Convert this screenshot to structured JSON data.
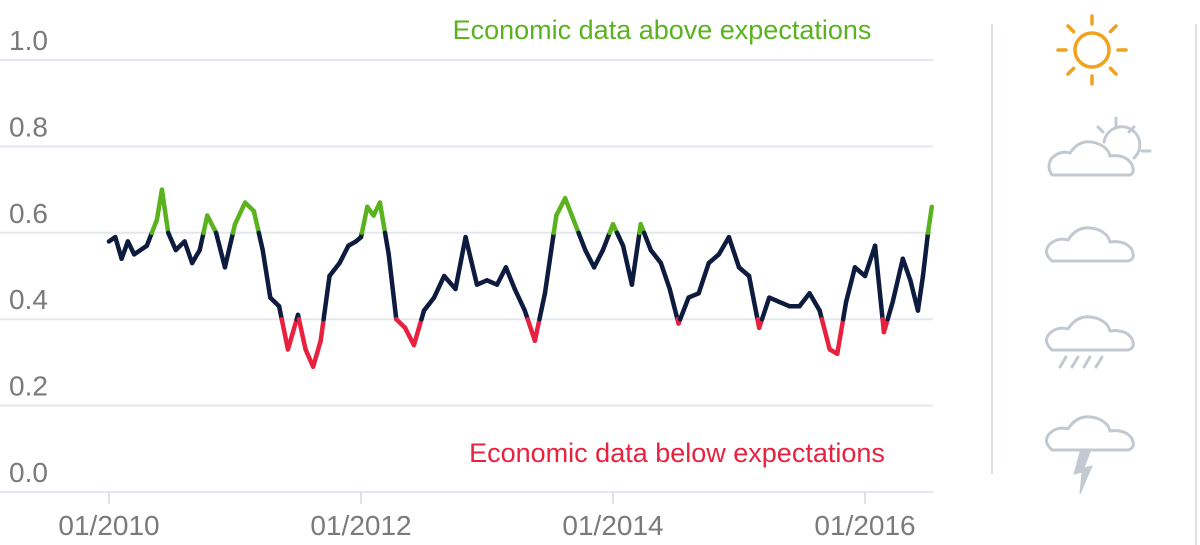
{
  "chart_data": {
    "type": "line",
    "title": "",
    "xlabel": "",
    "ylabel": "",
    "ylim": [
      0.0,
      1.0
    ],
    "xlim": [
      "2010-01",
      "2016-07"
    ],
    "yticks": [
      "0.0",
      "0.2",
      "0.4",
      "0.6",
      "0.8",
      "1.0"
    ],
    "xticks": [
      "01/2010",
      "01/2012",
      "01/2014",
      "01/2016"
    ],
    "grid": "horizontal",
    "thresholds": {
      "upper": 0.6,
      "lower": 0.4
    },
    "colors": {
      "above": "#5ab31e",
      "normal": "#0d1b3e",
      "below": "#e8213f"
    },
    "annotations": {
      "above": "Economic data above expectations",
      "below": "Economic data below expectations"
    },
    "series": [
      {
        "x": [
          2010.0,
          2010.05,
          2010.1,
          2010.15,
          2010.2,
          2010.3,
          2010.38,
          2010.42,
          2010.47,
          2010.53,
          2010.6,
          2010.66,
          2010.72,
          2010.78,
          2010.85,
          2010.92,
          2011.0,
          2011.08,
          2011.15,
          2011.22,
          2011.28,
          2011.35,
          2011.42,
          2011.5,
          2011.56,
          2011.62,
          2011.68,
          2011.75,
          2011.83,
          2011.9,
          2011.96,
          2012.0,
          2012.05,
          2012.1,
          2012.15,
          2012.22,
          2012.28,
          2012.35,
          2012.42,
          2012.5,
          2012.58,
          2012.66,
          2012.75,
          2012.83,
          2012.92,
          2013.0,
          2013.08,
          2013.15,
          2013.22,
          2013.3,
          2013.38,
          2013.46,
          2013.55,
          2013.62,
          2013.7,
          2013.78,
          2013.85,
          2013.92,
          2014.0,
          2014.08,
          2014.15,
          2014.22,
          2014.3,
          2014.38,
          2014.45,
          2014.52,
          2014.6,
          2014.68,
          2014.76,
          2014.84,
          2014.92,
          2015.0,
          2015.08,
          2015.16,
          2015.24,
          2015.32,
          2015.4,
          2015.48,
          2015.56,
          2015.64,
          2015.72,
          2015.78,
          2015.85,
          2015.92,
          2016.0,
          2016.08,
          2016.15,
          2016.22,
          2016.3,
          2016.36,
          2016.42,
          2016.46,
          2016.5,
          2016.53
        ],
        "values": [
          0.58,
          0.59,
          0.54,
          0.58,
          0.55,
          0.57,
          0.63,
          0.7,
          0.6,
          0.56,
          0.58,
          0.53,
          0.56,
          0.64,
          0.6,
          0.52,
          0.62,
          0.67,
          0.65,
          0.56,
          0.45,
          0.43,
          0.33,
          0.41,
          0.33,
          0.29,
          0.35,
          0.5,
          0.53,
          0.57,
          0.58,
          0.59,
          0.66,
          0.64,
          0.67,
          0.55,
          0.4,
          0.38,
          0.34,
          0.42,
          0.45,
          0.5,
          0.47,
          0.59,
          0.48,
          0.49,
          0.48,
          0.52,
          0.47,
          0.42,
          0.35,
          0.46,
          0.64,
          0.68,
          0.62,
          0.56,
          0.52,
          0.56,
          0.62,
          0.57,
          0.48,
          0.62,
          0.56,
          0.53,
          0.47,
          0.39,
          0.45,
          0.46,
          0.53,
          0.55,
          0.59,
          0.52,
          0.5,
          0.38,
          0.45,
          0.44,
          0.43,
          0.43,
          0.46,
          0.42,
          0.33,
          0.32,
          0.44,
          0.52,
          0.5,
          0.57,
          0.37,
          0.44,
          0.54,
          0.49,
          0.42,
          0.5,
          0.6,
          0.66
        ]
      }
    ]
  },
  "sidebar": {
    "icons": [
      "sun-icon",
      "partly-cloudy-icon",
      "cloud-icon",
      "rain-cloud-icon",
      "storm-cloud-icon"
    ],
    "colors": {
      "sun": "#f0a21c",
      "cloud": "#c3c9d0",
      "divider": "#dde2e8"
    }
  }
}
